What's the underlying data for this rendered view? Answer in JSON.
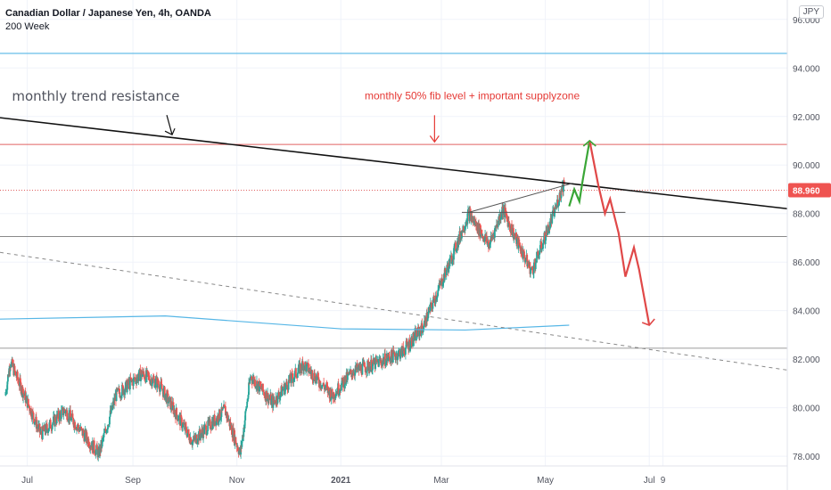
{
  "header": {
    "title": "Canadian Dollar / Japanese Yen, 4h, OANDA",
    "indicator": "200 Week",
    "currency_badge": "JPY"
  },
  "colors": {
    "grid": "#f0f3fa",
    "axis_text": "#50535e",
    "bull": "#26a69a",
    "bear": "#ef5350",
    "price_badge": "#ef5350",
    "ma_line": "#56b6e6",
    "resistance_line": "#111111",
    "fib_line": "#e06060",
    "projection_up": "#3aa637",
    "projection_down": "#e04848",
    "annotation_red": "#e53935"
  },
  "chart_data": {
    "type": "candlestick",
    "y_axis": {
      "ticks": [
        78,
        80,
        82,
        84,
        86,
        88,
        90,
        92,
        94,
        96
      ],
      "tick_labels": [
        "78.000",
        "80.000",
        "82.000",
        "84.000",
        "86.000",
        "88.000",
        "90.000",
        "92.000",
        "94.000",
        "96.000"
      ],
      "ylim": [
        77.6,
        96.8
      ]
    },
    "x_axis": {
      "tick_labels": [
        "Jul",
        "Sep",
        "Nov",
        "2021",
        "Mar",
        "May",
        "Jul",
        "9"
      ],
      "tick_dates": [
        "2020-07-01",
        "2020-09-01",
        "2020-11-01",
        "2021-01-01",
        "2021-03-01",
        "2021-05-01",
        "2021-07-01",
        "2021-07-09"
      ],
      "xlim": [
        "2020-06-15",
        "2021-09-20"
      ]
    },
    "last_price": {
      "value": 88.96,
      "label": "88.960"
    },
    "key_points": [
      {
        "date": "2020-06-18",
        "price": 80.5
      },
      {
        "date": "2020-06-21",
        "price": 81.9
      },
      {
        "date": "2020-07-09",
        "price": 78.9
      },
      {
        "date": "2020-07-23",
        "price": 79.9
      },
      {
        "date": "2020-08-12",
        "price": 78.1
      },
      {
        "date": "2020-08-22",
        "price": 80.5
      },
      {
        "date": "2020-09-06",
        "price": 81.4
      },
      {
        "date": "2020-09-16",
        "price": 81.0
      },
      {
        "date": "2020-10-06",
        "price": 78.6
      },
      {
        "date": "2020-10-25",
        "price": 79.9
      },
      {
        "date": "2020-11-03",
        "price": 78.1
      },
      {
        "date": "2020-11-09",
        "price": 81.3
      },
      {
        "date": "2020-11-22",
        "price": 80.2
      },
      {
        "date": "2020-12-10",
        "price": 81.8
      },
      {
        "date": "2020-12-27",
        "price": 80.5
      },
      {
        "date": "2021-01-08",
        "price": 81.5
      },
      {
        "date": "2021-01-21",
        "price": 81.8
      },
      {
        "date": "2021-02-06",
        "price": 82.3
      },
      {
        "date": "2021-02-18",
        "price": 83.3
      },
      {
        "date": "2021-03-06",
        "price": 86.0
      },
      {
        "date": "2021-03-17",
        "price": 88.0
      },
      {
        "date": "2021-03-29",
        "price": 86.7
      },
      {
        "date": "2021-04-06",
        "price": 88.2
      },
      {
        "date": "2021-04-14",
        "price": 86.9
      },
      {
        "date": "2021-04-23",
        "price": 85.6
      },
      {
        "date": "2021-05-06",
        "price": 88.0
      },
      {
        "date": "2021-05-12",
        "price": 89.3
      }
    ],
    "ma_200_week": [
      {
        "date": "2020-06-15",
        "price": 83.65
      },
      {
        "date": "2020-09-20",
        "price": 83.78
      },
      {
        "date": "2021-01-01",
        "price": 83.25
      },
      {
        "date": "2021-03-15",
        "price": 83.2
      },
      {
        "date": "2021-05-15",
        "price": 83.4
      }
    ],
    "horizontal_levels": [
      {
        "price": 94.6,
        "style": "solid-cyan"
      },
      {
        "price": 90.85,
        "style": "solid-red"
      },
      {
        "price": 88.96,
        "style": "dotted-red"
      },
      {
        "price": 87.05,
        "style": "solid-gray"
      },
      {
        "price": 82.45,
        "style": "solid-gray"
      }
    ],
    "trend_lines": [
      {
        "name": "monthly trend resistance",
        "from": {
          "date": "2020-06-15",
          "price": 91.95
        },
        "to": {
          "date": "2021-09-20",
          "price": 88.2
        }
      },
      {
        "name": "lower dashed trendline",
        "from": {
          "date": "2020-06-15",
          "price": 86.4
        },
        "to": {
          "date": "2021-09-20",
          "price": 81.55
        }
      }
    ],
    "pattern_lines": [
      {
        "from": {
          "date": "2021-03-13",
          "price": 88.05
        },
        "to": {
          "date": "2021-06-17",
          "price": 88.05
        }
      },
      {
        "from": {
          "date": "2021-03-17",
          "price": 88.05
        },
        "to": {
          "date": "2021-05-17",
          "price": 89.25
        }
      }
    ],
    "projection_up": [
      {
        "date": "2021-05-15",
        "price": 88.3
      },
      {
        "date": "2021-05-18",
        "price": 89.0
      },
      {
        "date": "2021-05-21",
        "price": 88.5
      },
      {
        "date": "2021-05-23",
        "price": 89.4
      },
      {
        "date": "2021-05-27",
        "price": 91.0
      }
    ],
    "projection_down": [
      {
        "date": "2021-05-27",
        "price": 91.0
      },
      {
        "date": "2021-06-01",
        "price": 89.2
      },
      {
        "date": "2021-06-05",
        "price": 88.0
      },
      {
        "date": "2021-06-08",
        "price": 88.6
      },
      {
        "date": "2021-06-13",
        "price": 87.2
      },
      {
        "date": "2021-06-17",
        "price": 85.4
      },
      {
        "date": "2021-06-22",
        "price": 86.6
      },
      {
        "date": "2021-06-25",
        "price": 85.7
      },
      {
        "date": "2021-07-01",
        "price": 83.4
      }
    ],
    "annotations": [
      {
        "text": "monthly trend resistance",
        "date": "2020-06-22",
        "price": 92.65,
        "color": "#50535e"
      },
      {
        "text": "monthly 50% fib level + important supplyzone",
        "date": "2021-01-15",
        "price": 92.7,
        "color": "#e53935"
      }
    ]
  }
}
